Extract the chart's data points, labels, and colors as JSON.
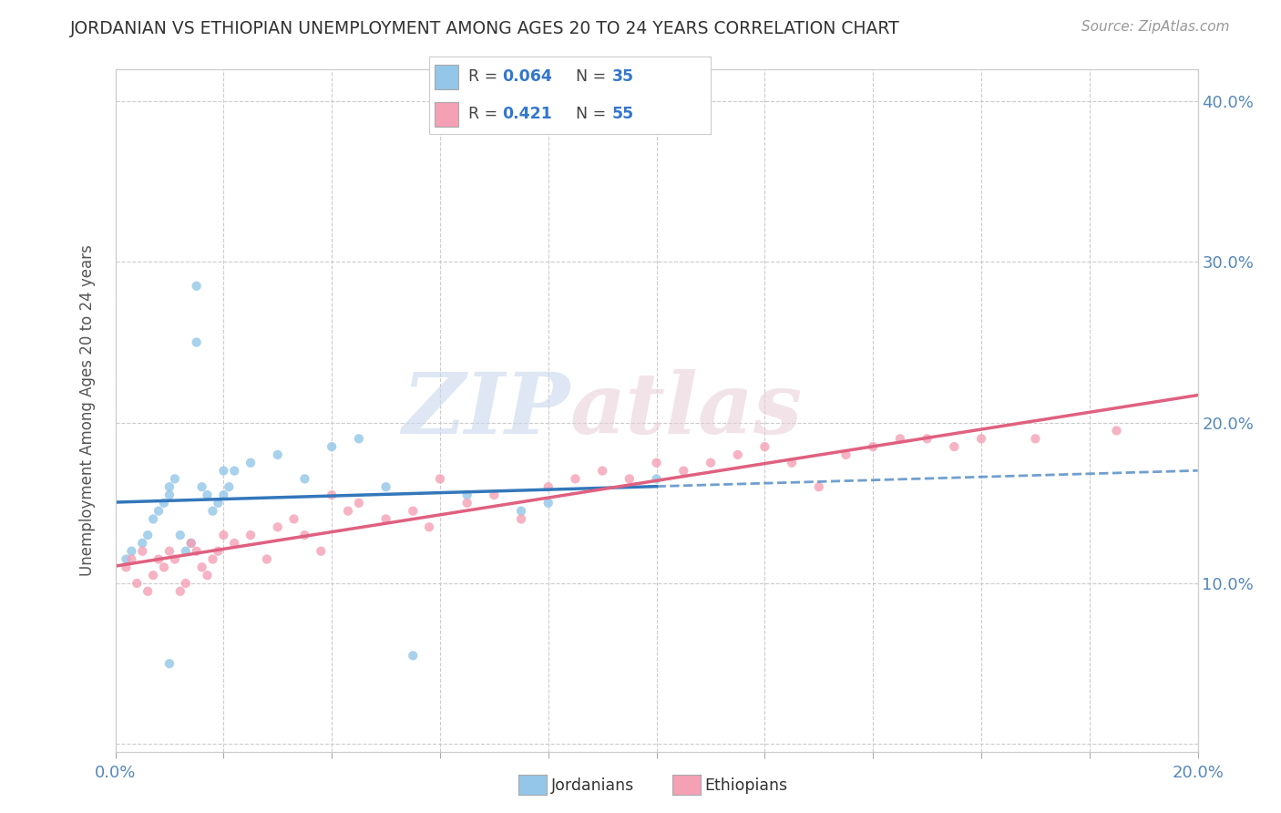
{
  "title": "JORDANIAN VS ETHIOPIAN UNEMPLOYMENT AMONG AGES 20 TO 24 YEARS CORRELATION CHART",
  "source": "Source: ZipAtlas.com",
  "ylabel": "Unemployment Among Ages 20 to 24 years",
  "xlim": [
    0.0,
    0.2
  ],
  "ylim": [
    -0.005,
    0.42
  ],
  "jordanian_color": "#93c6e8",
  "ethiopian_color": "#f4a0b5",
  "jordan_line_color": "#3377bb",
  "ethiopia_line_color": "#e06080",
  "jordan_R": 0.064,
  "jordan_N": 35,
  "ethiopia_R": 0.421,
  "ethiopia_N": 55,
  "background_color": "#ffffff",
  "grid_color": "#cccccc",
  "watermark_zip_color": "#d0dff0",
  "watermark_atlas_color": "#e0c8d8"
}
